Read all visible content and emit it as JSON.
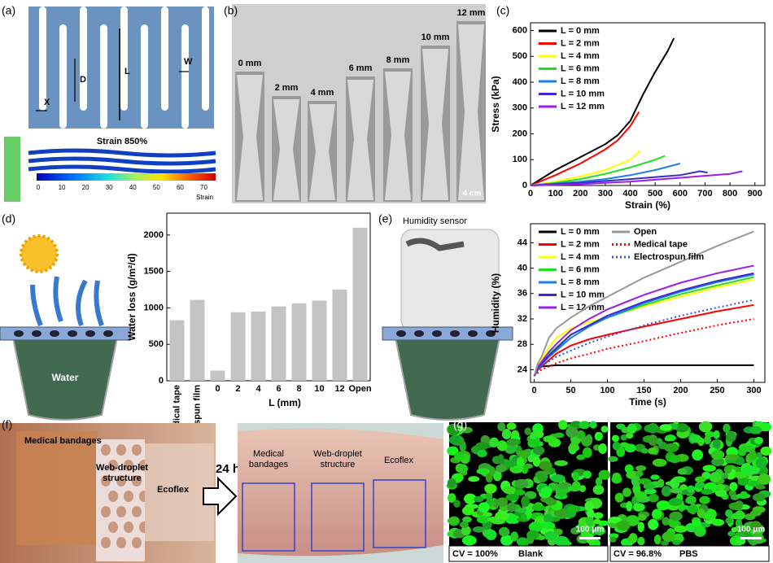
{
  "panels": {
    "labels": [
      "(a)",
      "(b)",
      "(c)",
      "(d)",
      "(e)",
      "(f)",
      "(g)"
    ],
    "a": {
      "dims": [
        "D",
        "L",
        "W",
        "X"
      ],
      "strain_title": "Strain 850%",
      "colorbar_ticks": [
        0,
        10,
        20,
        30,
        40,
        50,
        60,
        70
      ],
      "colorbar_label": "Strain"
    },
    "b": {
      "samples": [
        "0 mm",
        "2 mm",
        "4 mm",
        "6 mm",
        "8 mm",
        "10 mm",
        "12 mm"
      ],
      "scale": "4 cm"
    },
    "d": {
      "water": "Water"
    },
    "e": {
      "sensor": "Humidity sensor"
    },
    "f": {
      "before": [
        [
          "Medical bandages"
        ],
        [
          "Web-droplet",
          "structure"
        ],
        [
          "Ecoflex"
        ]
      ],
      "time": "24 h",
      "after": [
        [
          "Medical",
          "bandages"
        ],
        [
          "Web-droplet",
          "structure"
        ],
        [
          "Ecoflex"
        ]
      ]
    },
    "g": {
      "scale_bars": [
        "100 μm",
        "100 μm"
      ],
      "captions": [
        [
          "CV = 100%",
          "Blank"
        ],
        [
          "CV = 96.8%",
          "PBS"
        ]
      ]
    }
  },
  "chart_data": [
    {
      "type": "line",
      "xlabel": "Strain (%)",
      "ylabel": "Stress (kPa)",
      "xlim": [
        0,
        940
      ],
      "ylim": [
        0,
        630
      ],
      "xticks": [
        0,
        100,
        200,
        300,
        400,
        500,
        600,
        700,
        800,
        900
      ],
      "yticks": [
        0,
        100,
        200,
        300,
        400,
        500,
        600
      ],
      "legend": "upper left",
      "series": [
        {
          "name": "L = 0 mm",
          "color": "#000000",
          "x": [
            0,
            100,
            200,
            300,
            350,
            400,
            450,
            500,
            550,
            575
          ],
          "values": [
            0,
            60,
            110,
            160,
            195,
            250,
            350,
            440,
            520,
            570
          ]
        },
        {
          "name": "L = 2 mm",
          "color": "#ff0000",
          "x": [
            0,
            100,
            200,
            300,
            350,
            400,
            435
          ],
          "values": [
            0,
            40,
            85,
            140,
            175,
            230,
            285
          ]
        },
        {
          "name": "L = 4 mm",
          "color": "#ffff00",
          "x": [
            0,
            100,
            200,
            300,
            400,
            440
          ],
          "values": [
            0,
            15,
            35,
            60,
            100,
            135
          ]
        },
        {
          "name": "L = 6 mm",
          "color": "#22dd22",
          "x": [
            0,
            100,
            200,
            300,
            400,
            500,
            540
          ],
          "values": [
            0,
            10,
            25,
            45,
            70,
            100,
            115
          ]
        },
        {
          "name": "L = 8 mm",
          "color": "#1e7fe0",
          "x": [
            0,
            200,
            300,
            400,
            500,
            600
          ],
          "values": [
            0,
            15,
            25,
            40,
            60,
            85
          ]
        },
        {
          "name": "L = 10 mm",
          "color": "#3a2ad0",
          "x": [
            0,
            200,
            400,
            600,
            680,
            710
          ],
          "values": [
            0,
            10,
            25,
            40,
            55,
            50
          ]
        },
        {
          "name": "L = 12 mm",
          "color": "#9b1fe8",
          "x": [
            0,
            200,
            400,
            600,
            800,
            850
          ],
          "values": [
            0,
            5,
            15,
            30,
            45,
            55
          ]
        }
      ]
    },
    {
      "type": "bar",
      "xlabel": "L (mm)",
      "ylabel": "Water loss (g/m²/d)",
      "categories": [
        "Medical tape",
        "Electrospun film",
        "0",
        "2",
        "4",
        "6",
        "8",
        "10",
        "12",
        "Open"
      ],
      "values": [
        830,
        1110,
        140,
        940,
        950,
        1020,
        1060,
        1100,
        1250,
        2100
      ],
      "color": "#c4c4c4",
      "ylim": [
        0,
        2300
      ],
      "yticks": [
        0,
        500,
        1000,
        1500,
        2000
      ]
    },
    {
      "type": "line",
      "xlabel": "Time (s)",
      "ylabel": "Humidity (%)",
      "xlim": [
        -5,
        315
      ],
      "ylim": [
        22,
        47
      ],
      "xticks": [
        0,
        50,
        100,
        150,
        200,
        250,
        300
      ],
      "yticks": [
        24,
        28,
        32,
        36,
        40,
        44
      ],
      "legend": "upper left",
      "x": [
        0,
        5,
        10,
        20,
        30,
        50,
        75,
        100,
        150,
        200,
        250,
        300
      ],
      "series": [
        {
          "name": "L = 0 mm",
          "color": "#000000",
          "values": [
            23,
            24,
            24.5,
            24.6,
            24.7,
            24.7,
            24.7,
            24.7,
            24.7,
            24.7,
            24.7,
            24.7
          ]
        },
        {
          "name": "L = 2 mm",
          "color": "#ff0000",
          "values": [
            23,
            24,
            24.5,
            25.5,
            26.5,
            27.8,
            28.8,
            29.5,
            30.8,
            32,
            33.2,
            34.2
          ]
        },
        {
          "name": "L = 4 mm",
          "color": "#ffff00",
          "values": [
            23,
            24.5,
            25.5,
            27.5,
            29,
            30.5,
            31.5,
            32.3,
            34,
            35.5,
            37,
            38.2
          ]
        },
        {
          "name": "L = 6 mm",
          "color": "#22dd22",
          "values": [
            23,
            24.2,
            25,
            26.5,
            27.5,
            29.5,
            31,
            32.2,
            34.2,
            35.9,
            37.3,
            38.6
          ]
        },
        {
          "name": "L = 8 mm",
          "color": "#1e7fe0",
          "values": [
            23,
            24.2,
            24.8,
            26,
            27,
            29,
            30.8,
            32.2,
            34.5,
            36.3,
            37.8,
            39
          ]
        },
        {
          "name": "L = 10 mm",
          "color": "#3a2ad0",
          "values": [
            23,
            24.3,
            25,
            26.2,
            27.3,
            29.5,
            31,
            32.5,
            34.7,
            36.5,
            38,
            39.2
          ]
        },
        {
          "name": "L = 12 mm",
          "color": "#9b1fe8",
          "values": [
            23,
            24.5,
            25.2,
            26.8,
            28,
            30.2,
            32,
            33.5,
            35.8,
            37.7,
            39.2,
            40.4
          ]
        },
        {
          "name": "Open",
          "color": "#999999",
          "values": [
            23,
            25,
            26,
            29,
            30.5,
            32.2,
            34,
            35.5,
            38.5,
            41,
            43.5,
            45.8
          ]
        },
        {
          "name": "Medical tape",
          "color": "#ff0000",
          "dash": true,
          "values": [
            23,
            23.5,
            24,
            24.5,
            25,
            25.8,
            26.5,
            27.3,
            28.5,
            29.8,
            31,
            32
          ]
        },
        {
          "name": "Electrospun film",
          "color": "#3355dd",
          "dash": true,
          "values": [
            23,
            23.8,
            24.5,
            25.3,
            26,
            27,
            28.2,
            29.2,
            31,
            32.5,
            33.8,
            35
          ]
        }
      ]
    }
  ]
}
